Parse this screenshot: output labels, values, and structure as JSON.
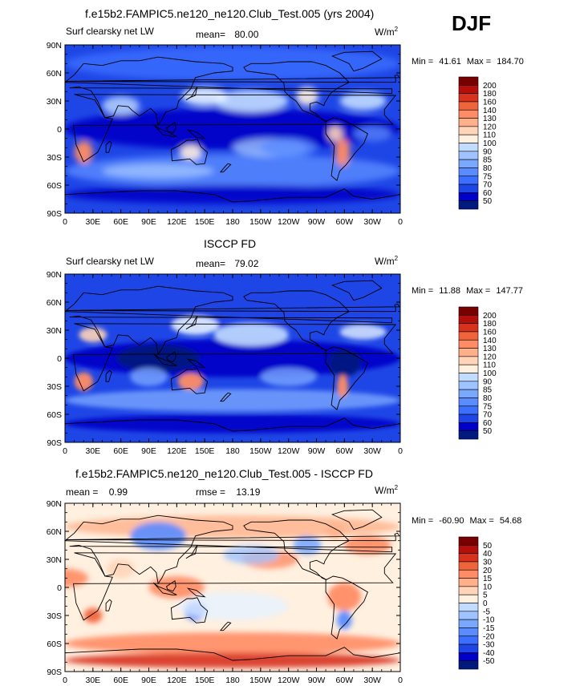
{
  "season": "DJF",
  "colors": {
    "diverging_ramp": [
      "#001a80",
      "#0000c8",
      "#1e46e6",
      "#3c6eff",
      "#5a8cff",
      "#7aa8ff",
      "#9fc3ff",
      "#c2dcff",
      "#e6f2ff",
      "#fff0e0",
      "#ffd4b8",
      "#ffb08a",
      "#ff8c64",
      "#f0643c",
      "#d8321e",
      "#b40f0a",
      "#780000"
    ]
  },
  "panels": [
    {
      "title": "f.e15b2.FAMPIC5.ne120_ne120.Club_Test.005 (yrs 2004)",
      "left_label": "Surf clearsky net LW",
      "stat1_label": "mean=",
      "stat1_value": "80.00",
      "stat2_label": "",
      "stat2_value": "",
      "units_base": "W/m",
      "units_sup": "2",
      "min_label": "Min =",
      "min_value": "41.61",
      "max_label": "Max =",
      "max_value": "184.70",
      "colorbar_levels": [
        "200",
        "180",
        "160",
        "140",
        "130",
        "120",
        "110",
        "100",
        "90",
        "85",
        "80",
        "75",
        "70",
        "60",
        "50"
      ]
    },
    {
      "title": "ISCCP FD",
      "left_label": "Surf clearsky net LW",
      "stat1_label": "mean=",
      "stat1_value": "79.02",
      "stat2_label": "",
      "stat2_value": "",
      "units_base": "W/m",
      "units_sup": "2",
      "min_label": "Min =",
      "min_value": "11.88",
      "max_label": "Max =",
      "max_value": "147.77",
      "colorbar_levels": [
        "200",
        "180",
        "160",
        "140",
        "130",
        "120",
        "110",
        "100",
        "90",
        "85",
        "80",
        "75",
        "70",
        "60",
        "50"
      ]
    },
    {
      "title": "f.e15b2.FAMPIC5.ne120_ne120.Club_Test.005 - ISCCP FD",
      "left_label": "mean =",
      "stat1_label": "",
      "stat1_value": "0.99",
      "stat2_label": "rmse =",
      "stat2_value": "13.19",
      "units_base": "W/m",
      "units_sup": "2",
      "min_label": "Min =",
      "min_value": "-60.90",
      "max_label": "Max =",
      "max_value": "54.68",
      "colorbar_levels": [
        "50",
        "40",
        "30",
        "20",
        "15",
        "10",
        "5",
        "0",
        "-5",
        "-10",
        "-15",
        "-20",
        "-30",
        "-40",
        "-50"
      ]
    }
  ],
  "lat_ticks": [
    "90N",
    "60N",
    "30N",
    "0",
    "30S",
    "60S",
    "90S"
  ],
  "lon_ticks": [
    "0",
    "30E",
    "60E",
    "90E",
    "120E",
    "150E",
    "180",
    "150W",
    "120W",
    "90W",
    "60W",
    "30W",
    "0"
  ]
}
